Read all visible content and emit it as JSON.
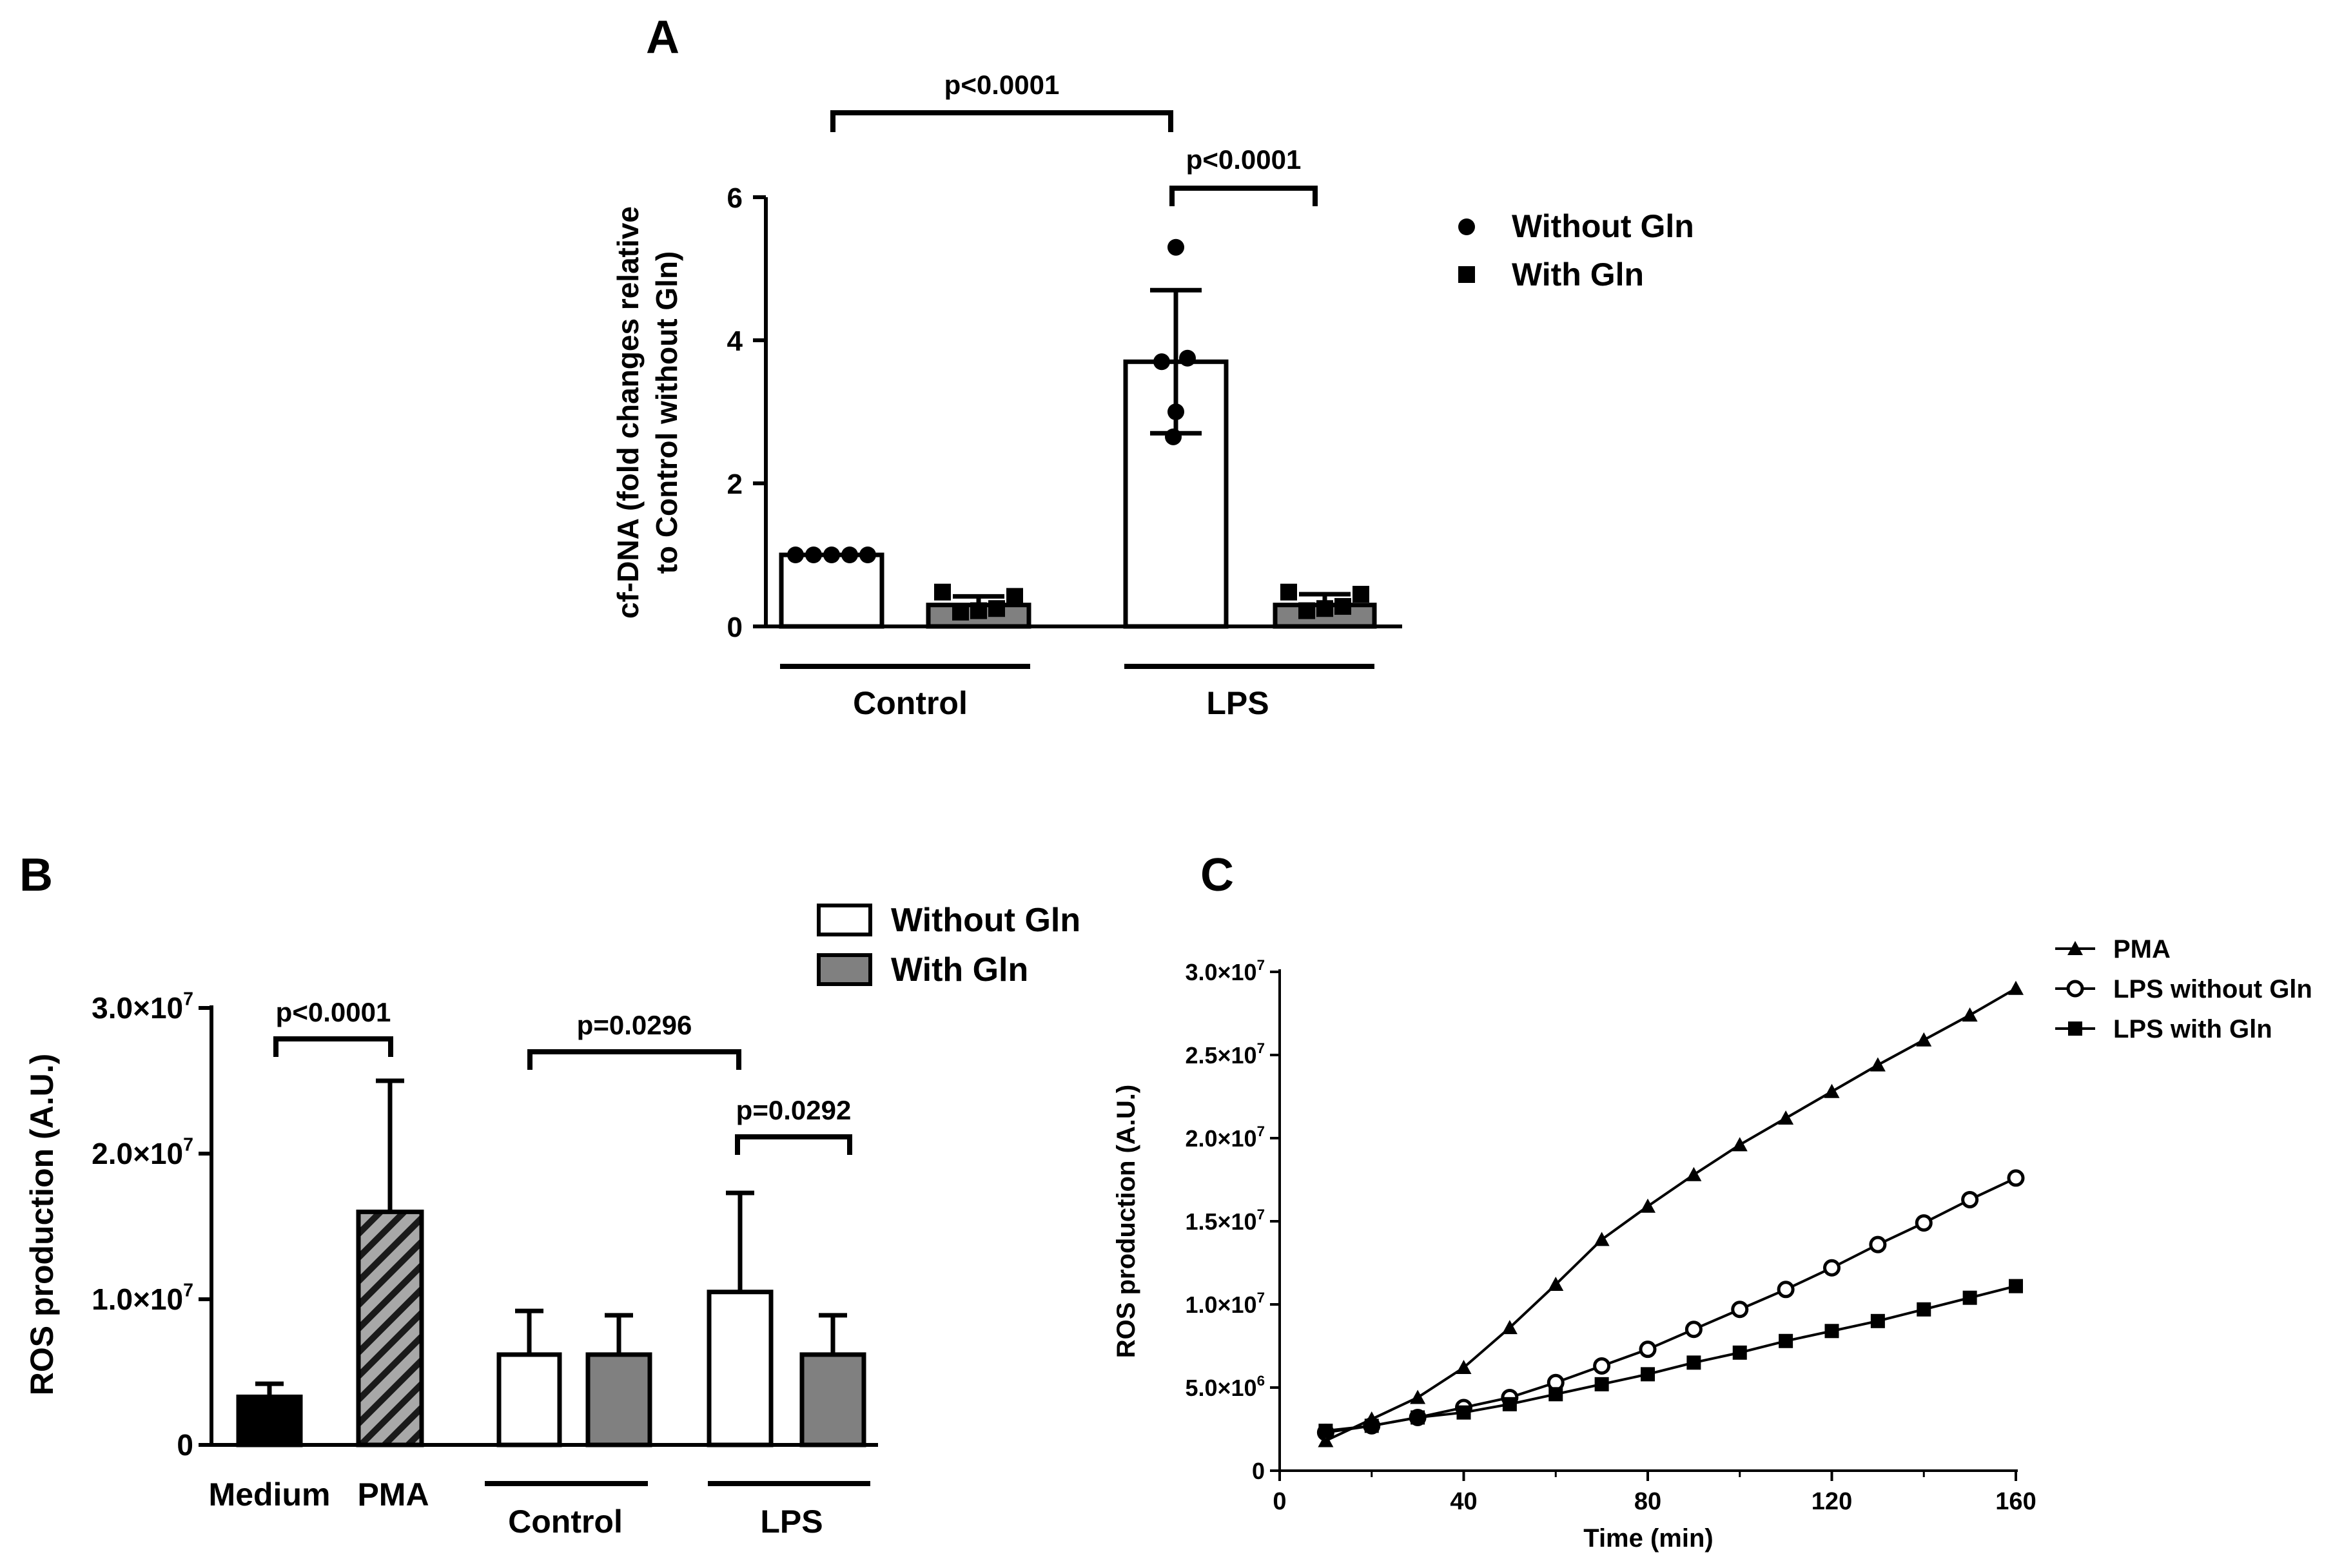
{
  "colors": {
    "ink": "#000000",
    "white": "#ffffff",
    "gray": "#808080",
    "pma_fill": "#a8a8a8"
  },
  "chart_data": [
    {
      "panel": "A",
      "type": "bar",
      "ylabel_line1": "cf-DNA (fold changes relative",
      "ylabel_line2": "to Control without Gln)",
      "ylim": [
        0,
        6
      ],
      "yticks": [
        "0",
        "2",
        "4",
        "6"
      ],
      "groups": [
        "Control",
        "LPS"
      ],
      "legend": [
        "Without Gln",
        "With Gln"
      ],
      "bars": [
        {
          "group": "Control",
          "series": "Without Gln",
          "value": 1.0,
          "sd": 0.0,
          "points": [
            1,
            1,
            1,
            1,
            1
          ]
        },
        {
          "group": "Control",
          "series": "With Gln",
          "value": 0.3,
          "sd": 0.12,
          "points": [
            0.48,
            0.2,
            0.22,
            0.25,
            0.42
          ]
        },
        {
          "group": "LPS",
          "series": "Without Gln",
          "value": 3.7,
          "sd": 1.0,
          "points": [
            5.3,
            3.7,
            2.65,
            3.0,
            3.75
          ]
        },
        {
          "group": "LPS",
          "series": "With Gln",
          "value": 0.3,
          "sd": 0.15,
          "points": [
            0.48,
            0.22,
            0.25,
            0.28,
            0.45
          ]
        }
      ],
      "annotations": [
        "p<0.0001",
        "p<0.0001"
      ]
    },
    {
      "panel": "B",
      "type": "bar",
      "ylabel": "ROS production (A.U.)",
      "ylim": [
        0,
        30000000
      ],
      "yticks": [
        {
          "mant": "0",
          "exp": ""
        },
        {
          "mant": "1.0×10",
          "exp": "7"
        },
        {
          "mant": "2.0×10",
          "exp": "7"
        },
        {
          "mant": "3.0×10",
          "exp": "7"
        }
      ],
      "categories": [
        "Medium",
        "PMA",
        "Control",
        "LPS"
      ],
      "legend": [
        "Without Gln",
        "With Gln"
      ],
      "bars": [
        {
          "category": "Medium",
          "value": 3300000,
          "error": 900000
        },
        {
          "category": "PMA",
          "value": 16000000,
          "error": 9000000
        },
        {
          "category": "Control",
          "series": "Without Gln",
          "value": 6200000,
          "error": 3000000
        },
        {
          "category": "Control",
          "series": "With Gln",
          "value": 6200000,
          "error": 2700000
        },
        {
          "category": "LPS",
          "series": "Without Gln",
          "value": 10500000,
          "error": 6800000
        },
        {
          "category": "LPS",
          "series": "With Gln",
          "value": 6200000,
          "error": 2700000
        }
      ],
      "annotations": [
        "p<0.0001",
        "p=0.0296",
        "p=0.0292"
      ]
    },
    {
      "panel": "C",
      "type": "line",
      "xlabel": "Time (min)",
      "ylabel": "ROS production (A.U.)",
      "xlim": [
        0,
        160
      ],
      "xticks": [
        "0",
        "40",
        "80",
        "120",
        "160"
      ],
      "ylim": [
        0,
        30000000
      ],
      "yticks": [
        {
          "mant": "0",
          "exp": ""
        },
        {
          "mant": "5.0×10",
          "exp": "6"
        },
        {
          "mant": "1.0×10",
          "exp": "7"
        },
        {
          "mant": "1.5×10",
          "exp": "7"
        },
        {
          "mant": "2.0×10",
          "exp": "7"
        },
        {
          "mant": "2.5×10",
          "exp": "7"
        },
        {
          "mant": "3.0×10",
          "exp": "7"
        }
      ],
      "x": [
        10,
        20,
        30,
        40,
        50,
        60,
        70,
        80,
        90,
        100,
        110,
        120,
        130,
        140,
        150,
        160
      ],
      "series": [
        {
          "name": "PMA",
          "marker": "triangle",
          "values": [
            1800000,
            3100000,
            4400000,
            6200000,
            8600000,
            11200000,
            13900000,
            15900000,
            17800000,
            19600000,
            21200000,
            22800000,
            24400000,
            25900000,
            27400000,
            29000000
          ]
        },
        {
          "name": "LPS without Gln",
          "marker": "open-circle",
          "values": [
            2300000,
            2700000,
            3200000,
            3800000,
            4400000,
            5300000,
            6300000,
            7300000,
            8500000,
            9700000,
            10900000,
            12200000,
            13600000,
            14900000,
            16300000,
            17600000
          ]
        },
        {
          "name": "LPS with Gln",
          "marker": "square",
          "values": [
            2400000,
            2700000,
            3200000,
            3500000,
            4000000,
            4600000,
            5200000,
            5800000,
            6500000,
            7100000,
            7800000,
            8400000,
            9000000,
            9700000,
            10400000,
            11100000
          ]
        }
      ]
    }
  ],
  "panel_labels": {
    "a": "A",
    "b": "B",
    "c": "C"
  }
}
